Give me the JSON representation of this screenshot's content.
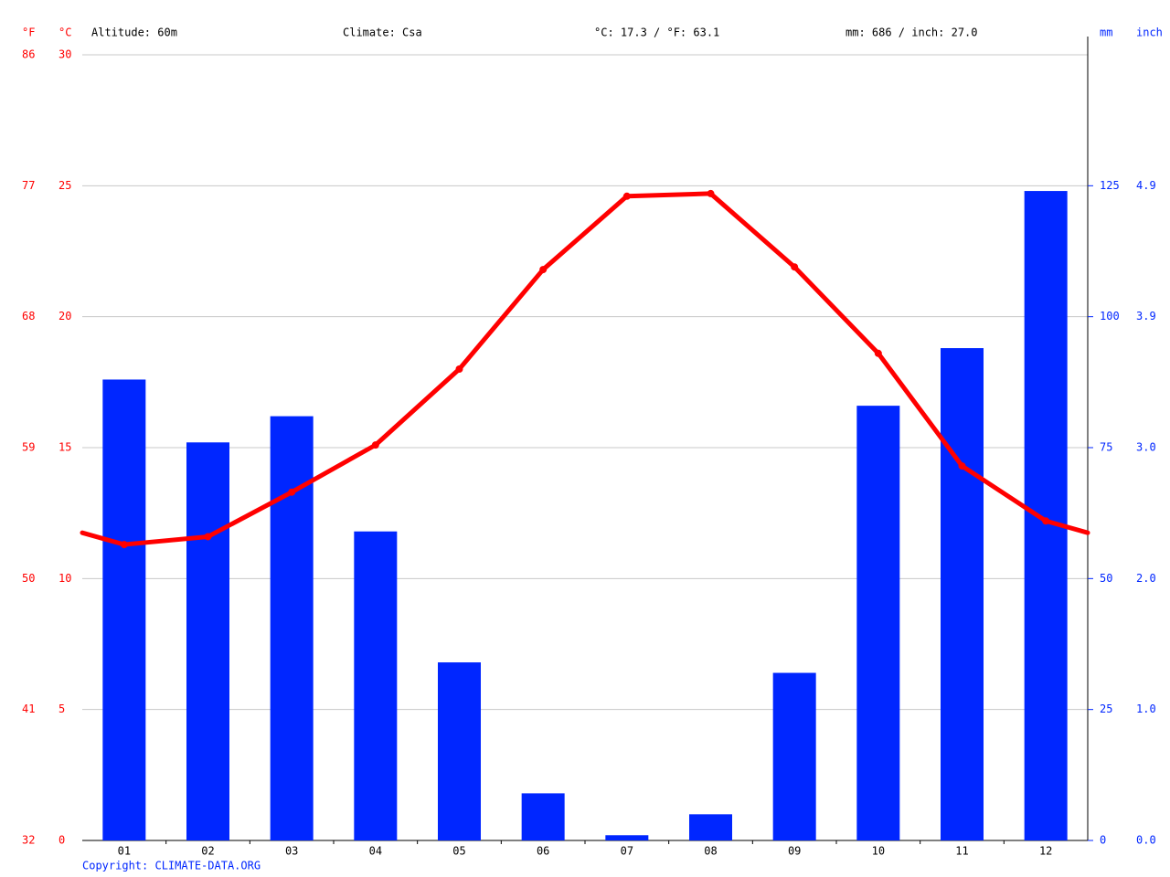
{
  "chart_data": {
    "type": "combo",
    "info": [
      "Altitude: 60m",
      "Climate: Csa",
      "°C: 17.3 / °F: 63.1",
      "mm: 686 / inch: 27.0"
    ],
    "unit_labels": {
      "f": "°F",
      "c": "°C",
      "mm": "mm",
      "inch": "inch"
    },
    "footer": "Copyright: CLIMATE-DATA.ORG",
    "categories": [
      "01",
      "02",
      "03",
      "04",
      "05",
      "06",
      "07",
      "08",
      "09",
      "10",
      "11",
      "12"
    ],
    "series": [
      {
        "type": "bar",
        "axis": "y2",
        "color": "#0026ff",
        "values": [
          88,
          76,
          81,
          59,
          34,
          9,
          1,
          5,
          32,
          83,
          94,
          124
        ]
      },
      {
        "type": "line",
        "color": "#ff0000",
        "values": [
          11.3,
          11.6,
          13.3,
          15.1,
          18.0,
          21.8,
          24.6,
          24.7,
          21.9,
          18.6,
          14.3,
          12.2
        ]
      }
    ],
    "ylim": [
      0,
      30
    ],
    "yticks": [
      0,
      5,
      10,
      15,
      20,
      25,
      30
    ],
    "yticks_f": [
      {
        "value": 0,
        "label": "32"
      },
      {
        "value": 5,
        "label": "41"
      },
      {
        "value": 10,
        "label": "50"
      },
      {
        "value": 15,
        "label": "59"
      },
      {
        "value": 20,
        "label": "68"
      },
      {
        "value": 25,
        "label": "77"
      },
      {
        "value": 30,
        "label": "86"
      }
    ],
    "y2lim": [
      0,
      150
    ],
    "y2ticks": [
      0,
      25,
      50,
      75,
      100,
      125
    ],
    "y2ticks_inch": [
      {
        "value": 0,
        "label": "0.0"
      },
      {
        "value": 25,
        "label": "1.0"
      },
      {
        "value": 50,
        "label": "2.0"
      },
      {
        "value": 75,
        "label": "3.0"
      },
      {
        "value": 100,
        "label": "3.9"
      },
      {
        "value": 125,
        "label": "4.9"
      }
    ],
    "grid": true
  }
}
